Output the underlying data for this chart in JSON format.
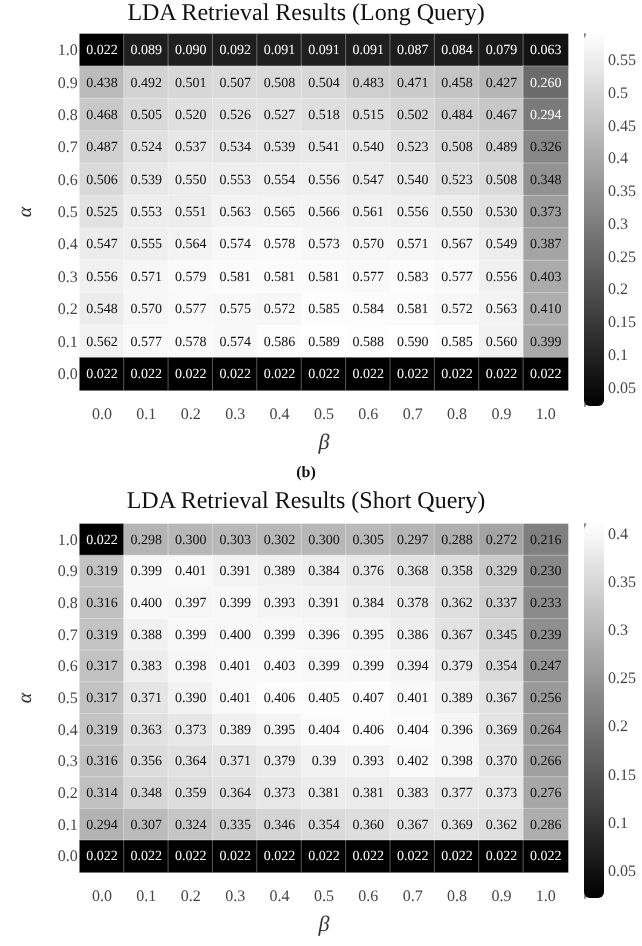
{
  "chart_data": [
    {
      "type": "heatmap",
      "title": "LDA Retrieval Results (Long Query)",
      "xlabel": "β",
      "ylabel": "α",
      "categories": [
        "0.0",
        "0.1",
        "0.2",
        "0.3",
        "0.4",
        "0.5",
        "0.6",
        "0.7",
        "0.8",
        "0.9",
        "1.0"
      ],
      "y_categories": [
        "1.0",
        "0.9",
        "0.8",
        "0.7",
        "0.6",
        "0.5",
        "0.4",
        "0.3",
        "0.2",
        "0.1",
        "0.0"
      ],
      "cells": [
        [
          0.022,
          0.089,
          0.09,
          0.092,
          0.091,
          0.091,
          0.091,
          0.087,
          0.084,
          0.079,
          0.063
        ],
        [
          0.438,
          0.492,
          0.501,
          0.507,
          0.508,
          0.504,
          0.483,
          0.471,
          0.458,
          0.427,
          0.26
        ],
        [
          0.468,
          0.505,
          0.52,
          0.526,
          0.527,
          0.518,
          0.515,
          0.502,
          0.484,
          0.467,
          0.294
        ],
        [
          0.487,
          0.524,
          0.537,
          0.534,
          0.539,
          0.541,
          0.54,
          0.523,
          0.508,
          0.489,
          0.326
        ],
        [
          0.506,
          0.539,
          0.55,
          0.553,
          0.554,
          0.556,
          0.547,
          0.54,
          0.523,
          0.508,
          0.348
        ],
        [
          0.525,
          0.553,
          0.551,
          0.563,
          0.565,
          0.566,
          0.561,
          0.556,
          0.55,
          0.53,
          0.373
        ],
        [
          0.547,
          0.555,
          0.564,
          0.574,
          0.578,
          0.573,
          0.57,
          0.571,
          0.567,
          0.549,
          0.387
        ],
        [
          0.556,
          0.571,
          0.579,
          0.581,
          0.581,
          0.581,
          0.577,
          0.583,
          0.577,
          0.556,
          0.403
        ],
        [
          0.548,
          0.57,
          0.577,
          0.575,
          0.572,
          0.585,
          0.584,
          0.581,
          0.572,
          0.563,
          0.41
        ],
        [
          0.562,
          0.577,
          0.578,
          0.574,
          0.586,
          0.589,
          0.588,
          0.59,
          0.585,
          0.56,
          0.399
        ],
        [
          0.022,
          0.022,
          0.022,
          0.022,
          0.022,
          0.022,
          0.022,
          0.022,
          0.022,
          0.022,
          0.022
        ]
      ],
      "cell_labels": [
        [
          "0.022",
          "0.089",
          "0.090",
          "0.092",
          "0.091",
          "0.091",
          "0.091",
          "0.087",
          "0.084",
          "0.079",
          "0.063"
        ],
        [
          "0.438",
          "0.492",
          "0.501",
          "0.507",
          "0.508",
          "0.504",
          "0.483",
          "0.471",
          "0.458",
          "0.427",
          "0.260"
        ],
        [
          "0.468",
          "0.505",
          "0.520",
          "0.526",
          "0.527",
          "0.518",
          "0.515",
          "0.502",
          "0.484",
          "0.467",
          "0.294"
        ],
        [
          "0.487",
          "0.524",
          "0.537",
          "0.534",
          "0.539",
          "0.541",
          "0.540",
          "0.523",
          "0.508",
          "0.489",
          "0.326"
        ],
        [
          "0.506",
          "0.539",
          "0.550",
          "0.553",
          "0.554",
          "0.556",
          "0.547",
          "0.540",
          "0.523",
          "0.508",
          "0.348"
        ],
        [
          "0.525",
          "0.553",
          "0.551",
          "0.563",
          "0.565",
          "0.566",
          "0.561",
          "0.556",
          "0.550",
          "0.530",
          "0.373"
        ],
        [
          "0.547",
          "0.555",
          "0.564",
          "0.574",
          "0.578",
          "0.573",
          "0.570",
          "0.571",
          "0.567",
          "0.549",
          "0.387"
        ],
        [
          "0.556",
          "0.571",
          "0.579",
          "0.581",
          "0.581",
          "0.581",
          "0.577",
          "0.583",
          "0.577",
          "0.556",
          "0.403"
        ],
        [
          "0.548",
          "0.570",
          "0.577",
          "0.575",
          "0.572",
          "0.585",
          "0.584",
          "0.581",
          "0.572",
          "0.563",
          "0.410"
        ],
        [
          "0.562",
          "0.577",
          "0.578",
          "0.574",
          "0.586",
          "0.589",
          "0.588",
          "0.590",
          "0.585",
          "0.560",
          "0.399"
        ],
        [
          "0.022",
          "0.022",
          "0.022",
          "0.022",
          "0.022",
          "0.022",
          "0.022",
          "0.022",
          "0.022",
          "0.022",
          "0.022"
        ]
      ],
      "clim": [
        0.022,
        0.59
      ],
      "cticks": [
        0.05,
        0.1,
        0.15,
        0.2,
        0.25,
        0.3,
        0.35,
        0.4,
        0.45,
        0.5,
        0.55
      ]
    },
    {
      "type": "heatmap",
      "title": "LDA Retrieval Results (Short Query)",
      "annotations": [
        "(b)"
      ],
      "xlabel": "β",
      "ylabel": "α",
      "categories": [
        "0.0",
        "0.1",
        "0.2",
        "0.3",
        "0.4",
        "0.5",
        "0.6",
        "0.7",
        "0.8",
        "0.9",
        "1.0"
      ],
      "y_categories": [
        "1.0",
        "0.9",
        "0.8",
        "0.7",
        "0.6",
        "0.5",
        "0.4",
        "0.3",
        "0.2",
        "0.1",
        "0.0"
      ],
      "cells": [
        [
          0.022,
          0.298,
          0.3,
          0.303,
          0.302,
          0.3,
          0.305,
          0.297,
          0.288,
          0.272,
          0.216
        ],
        [
          0.319,
          0.399,
          0.401,
          0.391,
          0.389,
          0.384,
          0.376,
          0.368,
          0.358,
          0.329,
          0.23
        ],
        [
          0.316,
          0.4,
          0.397,
          0.399,
          0.393,
          0.391,
          0.384,
          0.378,
          0.362,
          0.337,
          0.233
        ],
        [
          0.319,
          0.388,
          0.399,
          0.4,
          0.399,
          0.396,
          0.395,
          0.386,
          0.367,
          0.345,
          0.239
        ],
        [
          0.317,
          0.383,
          0.398,
          0.401,
          0.403,
          0.399,
          0.399,
          0.394,
          0.379,
          0.354,
          0.247
        ],
        [
          0.317,
          0.371,
          0.39,
          0.401,
          0.406,
          0.405,
          0.407,
          0.401,
          0.389,
          0.367,
          0.256
        ],
        [
          0.319,
          0.363,
          0.373,
          0.389,
          0.395,
          0.404,
          0.406,
          0.404,
          0.396,
          0.369,
          0.264
        ],
        [
          0.316,
          0.356,
          0.364,
          0.371,
          0.379,
          0.39,
          0.393,
          0.402,
          0.398,
          0.37,
          0.266
        ],
        [
          0.314,
          0.348,
          0.359,
          0.364,
          0.373,
          0.381,
          0.381,
          0.383,
          0.377,
          0.373,
          0.276
        ],
        [
          0.294,
          0.307,
          0.324,
          0.335,
          0.346,
          0.354,
          0.36,
          0.367,
          0.369,
          0.362,
          0.286
        ],
        [
          0.022,
          0.022,
          0.022,
          0.022,
          0.022,
          0.022,
          0.022,
          0.022,
          0.022,
          0.022,
          0.022
        ]
      ],
      "cell_labels": [
        [
          "0.022",
          "0.298",
          "0.300",
          "0.303",
          "0.302",
          "0.300",
          "0.305",
          "0.297",
          "0.288",
          "0.272",
          "0.216"
        ],
        [
          "0.319",
          "0.399",
          "0.401",
          "0.391",
          "0.389",
          "0.384",
          "0.376",
          "0.368",
          "0.358",
          "0.329",
          "0.230"
        ],
        [
          "0.316",
          "0.400",
          "0.397",
          "0.399",
          "0.393",
          "0.391",
          "0.384",
          "0.378",
          "0.362",
          "0.337",
          "0.233"
        ],
        [
          "0.319",
          "0.388",
          "0.399",
          "0.400",
          "0.399",
          "0.396",
          "0.395",
          "0.386",
          "0.367",
          "0.345",
          "0.239"
        ],
        [
          "0.317",
          "0.383",
          "0.398",
          "0.401",
          "0.403",
          "0.399",
          "0.399",
          "0.394",
          "0.379",
          "0.354",
          "0.247"
        ],
        [
          "0.317",
          "0.371",
          "0.390",
          "0.401",
          "0.406",
          "0.405",
          "0.407",
          "0.401",
          "0.389",
          "0.367",
          "0.256"
        ],
        [
          "0.319",
          "0.363",
          "0.373",
          "0.389",
          "0.395",
          "0.404",
          "0.406",
          "0.404",
          "0.396",
          "0.369",
          "0.264"
        ],
        [
          "0.316",
          "0.356",
          "0.364",
          "0.371",
          "0.379",
          "0.39",
          "0.393",
          "0.402",
          "0.398",
          "0.370",
          "0.266"
        ],
        [
          "0.314",
          "0.348",
          "0.359",
          "0.364",
          "0.373",
          "0.381",
          "0.381",
          "0.383",
          "0.377",
          "0.373",
          "0.276"
        ],
        [
          "0.294",
          "0.307",
          "0.324",
          "0.335",
          "0.346",
          "0.354",
          "0.360",
          "0.367",
          "0.369",
          "0.362",
          "0.286"
        ],
        [
          "0.022",
          "0.022",
          "0.022",
          "0.022",
          "0.022",
          "0.022",
          "0.022",
          "0.022",
          "0.022",
          "0.022",
          "0.022"
        ]
      ],
      "clim": [
        0.022,
        0.41
      ],
      "cticks": [
        0.05,
        0.1,
        0.15,
        0.2,
        0.25,
        0.3,
        0.35,
        0.4
      ]
    }
  ]
}
